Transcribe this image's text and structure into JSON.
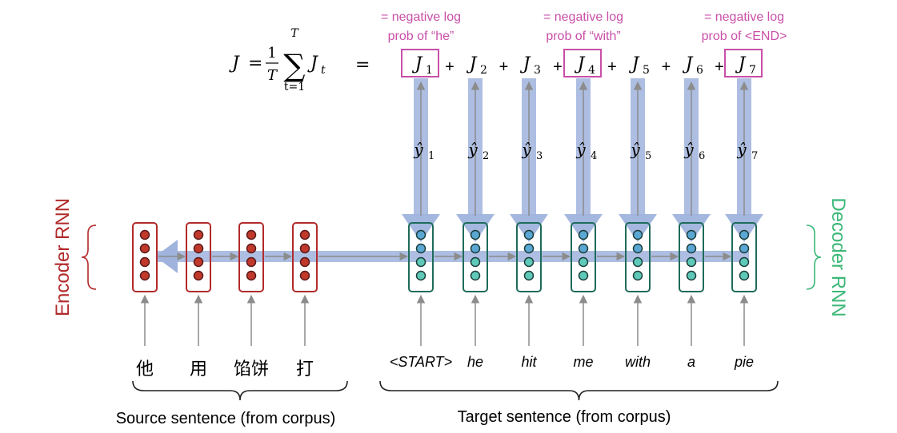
{
  "colors": {
    "encoder": "#b22a2a",
    "encoder_dot": "#c0392b",
    "decoder": "#1e6b5a",
    "decoder_dot": "#5fc9b8",
    "decoder_dot_top": "#5aa7d4",
    "loss_box": "#c94fa8",
    "flow": "#9fb3dd",
    "arrow": "#8c8c8c",
    "decoder_label": "#3cb878"
  },
  "loss_formula": {
    "lhs": "J",
    "equals": "=",
    "frac_num": "1",
    "frac_den": "T",
    "sum_sym": "∑",
    "sum_upper": "T",
    "sum_lower": "t=1",
    "term": "J",
    "term_sub": "t",
    "second_equals": "=",
    "plus": "+"
  },
  "annotations": [
    {
      "line1": "= negative log",
      "line2": "prob of “he”"
    },
    {
      "line1": "= negative log",
      "line2": "prob of “with”"
    },
    {
      "line1": "= negative log",
      "line2": "prob of <END>"
    }
  ],
  "loss_terms": [
    {
      "label": "J",
      "sub": "1",
      "boxed": true
    },
    {
      "label": "J",
      "sub": "2",
      "boxed": false
    },
    {
      "label": "J",
      "sub": "3",
      "boxed": false
    },
    {
      "label": "J",
      "sub": "4",
      "boxed": true
    },
    {
      "label": "J",
      "sub": "5",
      "boxed": false
    },
    {
      "label": "J",
      "sub": "6",
      "boxed": false
    },
    {
      "label": "J",
      "sub": "7",
      "boxed": true
    }
  ],
  "predictions": [
    {
      "label": "ŷ",
      "sub": "1"
    },
    {
      "label": "ŷ",
      "sub": "2"
    },
    {
      "label": "ŷ",
      "sub": "3"
    },
    {
      "label": "ŷ",
      "sub": "4"
    },
    {
      "label": "ŷ",
      "sub": "5"
    },
    {
      "label": "ŷ",
      "sub": "6"
    },
    {
      "label": "ŷ",
      "sub": "7"
    }
  ],
  "source_words": [
    "他",
    "用",
    "馅饼",
    "打"
  ],
  "target_words": [
    "<START>",
    "he",
    "hit",
    "me",
    "with",
    "a",
    "pie"
  ],
  "encoder_label": "Encoder RNN",
  "decoder_label": "Decoder RNN",
  "source_caption": "Source sentence (from corpus)",
  "target_caption": "Target sentence (from corpus)"
}
